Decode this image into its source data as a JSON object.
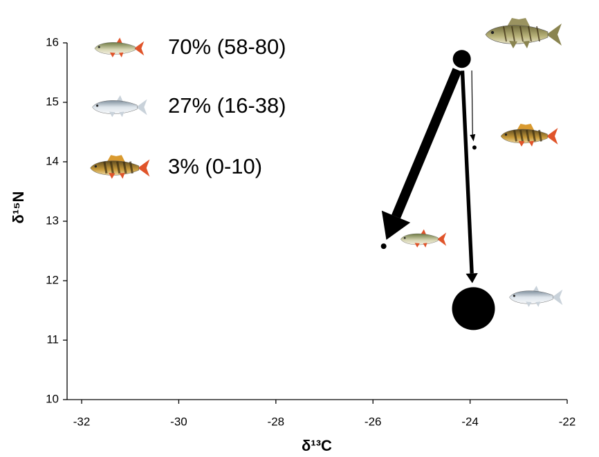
{
  "chart_data": {
    "type": "scatter",
    "xlabel": "δ¹³C",
    "ylabel": "δ¹⁵N",
    "x": [
      -24.17,
      -25.78,
      -23.93,
      -23.91
    ],
    "y": [
      15.73,
      12.58,
      11.53,
      14.24
    ],
    "sizes": [
      13,
      4,
      31,
      3
    ],
    "color": "#000000",
    "xlim": [
      -32.3,
      -22
    ],
    "xticks": [
      -32,
      -30,
      -28,
      -26,
      -24,
      -22
    ],
    "ylim": [
      10,
      16
    ],
    "yticks": [
      10,
      11,
      12,
      13,
      14,
      15,
      16
    ],
    "diet": [
      {
        "value": 70,
        "label": "70% (58-80)"
      },
      {
        "value": 27,
        "label": "27% (16-38)"
      },
      {
        "value": 3,
        "label": "3% (0-10)"
      }
    ]
  }
}
